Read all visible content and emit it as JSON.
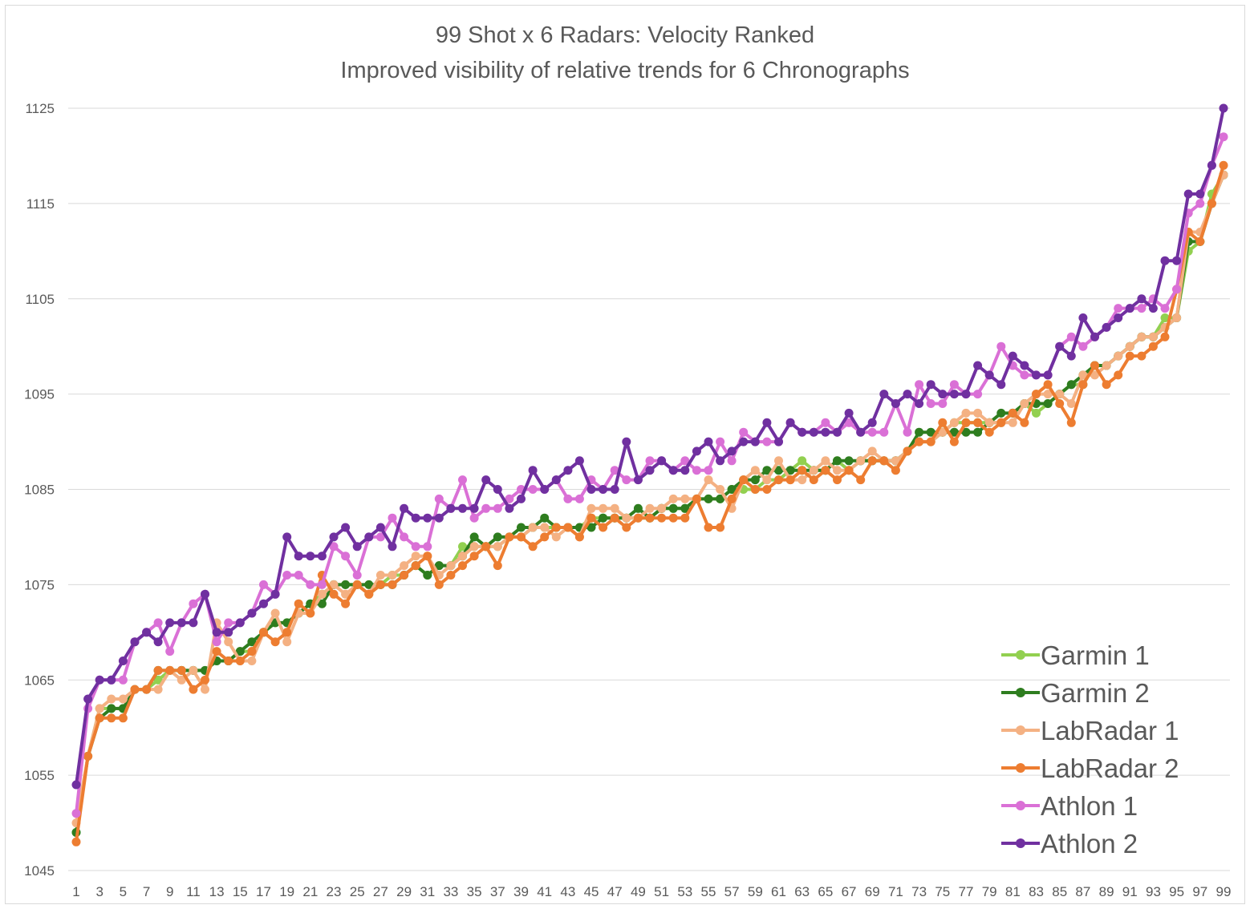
{
  "chart_data": {
    "type": "line",
    "title": "99 Shot x 6 Radars: Velocity Ranked",
    "subtitle": "Improved visibility of relative trends for 6 Chronographs",
    "xlabel": "",
    "ylabel": "",
    "ylim": [
      1045,
      1125
    ],
    "yticks": [
      1045,
      1055,
      1065,
      1075,
      1085,
      1095,
      1105,
      1115,
      1125
    ],
    "xticks": [
      1,
      3,
      5,
      7,
      9,
      11,
      13,
      15,
      17,
      19,
      21,
      23,
      25,
      27,
      29,
      31,
      33,
      35,
      37,
      39,
      41,
      43,
      45,
      47,
      49,
      51,
      53,
      55,
      57,
      59,
      61,
      63,
      65,
      67,
      69,
      71,
      73,
      75,
      77,
      79,
      81,
      83,
      85,
      87,
      89,
      91,
      93,
      95,
      97,
      99
    ],
    "grid": "horizontal",
    "legend_position": "bottom-right",
    "series": [
      {
        "name": "Garmin 1",
        "color": "#92d050",
        "values": [
          1049,
          1057,
          1062,
          1062,
          1062,
          1064,
          1064,
          1065,
          1066,
          1066,
          1066,
          1066,
          1067,
          1067,
          1068,
          1068,
          1070,
          1071,
          1071,
          1072,
          1073,
          1074,
          1075,
          1075,
          1075,
          1074,
          1075,
          1076,
          1076,
          1077,
          1076,
          1077,
          1077,
          1079,
          1079,
          1079,
          1079,
          1080,
          1080,
          1081,
          1081,
          1081,
          1081,
          1081,
          1082,
          1082,
          1082,
          1082,
          1082,
          1082,
          1083,
          1083,
          1083,
          1084,
          1084,
          1084,
          1085,
          1085,
          1085,
          1086,
          1086,
          1087,
          1088,
          1087,
          1087,
          1088,
          1087,
          1088,
          1088,
          1088,
          1088,
          1089,
          1090,
          1090,
          1091,
          1092,
          1092,
          1092,
          1092,
          1092,
          1093,
          1094,
          1093,
          1094,
          1095,
          1096,
          1096,
          1098,
          1098,
          1099,
          1100,
          1101,
          1101,
          1103,
          1103,
          1110,
          1111,
          1116,
          1118
        ]
      },
      {
        "name": "Garmin 2",
        "color": "#2e7d1f",
        "values": [
          1049,
          1057,
          1061,
          1062,
          1062,
          1064,
          1064,
          1066,
          1066,
          1066,
          1066,
          1066,
          1067,
          1067,
          1068,
          1069,
          1070,
          1071,
          1071,
          1072,
          1073,
          1073,
          1075,
          1075,
          1075,
          1075,
          1075,
          1075,
          1076,
          1077,
          1076,
          1077,
          1077,
          1078,
          1080,
          1079,
          1080,
          1080,
          1081,
          1081,
          1082,
          1081,
          1081,
          1081,
          1081,
          1082,
          1082,
          1082,
          1083,
          1082,
          1083,
          1083,
          1083,
          1084,
          1084,
          1084,
          1085,
          1086,
          1086,
          1087,
          1087,
          1087,
          1087,
          1087,
          1087,
          1088,
          1088,
          1088,
          1088,
          1088,
          1088,
          1089,
          1091,
          1091,
          1091,
          1091,
          1091,
          1091,
          1092,
          1093,
          1093,
          1094,
          1094,
          1094,
          1095,
          1096,
          1097,
          1098,
          1098,
          1099,
          1100,
          1101,
          1101,
          1102,
          1103,
          1111,
          1111,
          1115,
          1118
        ]
      },
      {
        "name": "LabRadar 1",
        "color": "#f4b183",
        "values": [
          1050,
          1057,
          1062,
          1063,
          1063,
          1064,
          1064,
          1064,
          1066,
          1065,
          1066,
          1064,
          1071,
          1069,
          1067,
          1067,
          1070,
          1072,
          1069,
          1072,
          1072,
          1074,
          1075,
          1074,
          1075,
          1074,
          1076,
          1076,
          1077,
          1078,
          1078,
          1076,
          1077,
          1078,
          1079,
          1079,
          1079,
          1080,
          1080,
          1081,
          1081,
          1080,
          1081,
          1080,
          1083,
          1083,
          1083,
          1082,
          1082,
          1083,
          1083,
          1084,
          1084,
          1084,
          1086,
          1085,
          1083,
          1086,
          1087,
          1086,
          1088,
          1086,
          1086,
          1087,
          1088,
          1087,
          1087,
          1088,
          1089,
          1088,
          1088,
          1089,
          1090,
          1090,
          1091,
          1092,
          1093,
          1093,
          1092,
          1092,
          1092,
          1094,
          1095,
          1095,
          1095,
          1094,
          1097,
          1097,
          1098,
          1099,
          1100,
          1101,
          1101,
          1102,
          1103,
          1112,
          1112,
          1115,
          1118
        ]
      },
      {
        "name": "LabRadar 2",
        "color": "#ed7d31",
        "values": [
          1048,
          1057,
          1061,
          1061,
          1061,
          1064,
          1064,
          1066,
          1066,
          1066,
          1064,
          1065,
          1068,
          1067,
          1067,
          1068,
          1070,
          1069,
          1070,
          1073,
          1072,
          1076,
          1074,
          1073,
          1075,
          1074,
          1075,
          1075,
          1076,
          1077,
          1078,
          1075,
          1076,
          1077,
          1078,
          1079,
          1077,
          1080,
          1080,
          1079,
          1080,
          1081,
          1081,
          1080,
          1082,
          1081,
          1082,
          1081,
          1082,
          1082,
          1082,
          1082,
          1082,
          1084,
          1081,
          1081,
          1084,
          1086,
          1085,
          1085,
          1086,
          1086,
          1087,
          1086,
          1087,
          1086,
          1087,
          1086,
          1088,
          1088,
          1087,
          1089,
          1090,
          1090,
          1092,
          1090,
          1092,
          1092,
          1091,
          1092,
          1093,
          1092,
          1095,
          1096,
          1094,
          1092,
          1096,
          1098,
          1096,
          1097,
          1099,
          1099,
          1100,
          1101,
          1106,
          1112,
          1111,
          1115,
          1119
        ]
      },
      {
        "name": "Athlon 1",
        "color": "#da70d6",
        "values": [
          1051,
          1062,
          1065,
          1065,
          1065,
          1069,
          1070,
          1071,
          1068,
          1071,
          1073,
          1074,
          1069,
          1071,
          1071,
          1072,
          1075,
          1074,
          1076,
          1076,
          1075,
          1075,
          1079,
          1078,
          1076,
          1080,
          1080,
          1082,
          1080,
          1079,
          1079,
          1084,
          1083,
          1086,
          1082,
          1083,
          1083,
          1084,
          1085,
          1085,
          1085,
          1086,
          1084,
          1084,
          1086,
          1085,
          1087,
          1086,
          1086,
          1088,
          1088,
          1087,
          1088,
          1087,
          1087,
          1090,
          1088,
          1091,
          1090,
          1090,
          1090,
          1092,
          1091,
          1091,
          1092,
          1091,
          1092,
          1091,
          1091,
          1091,
          1094,
          1091,
          1096,
          1094,
          1094,
          1096,
          1095,
          1095,
          1097,
          1100,
          1098,
          1097,
          1097,
          1097,
          1100,
          1101,
          1100,
          1101,
          1102,
          1104,
          1104,
          1104,
          1105,
          1104,
          1106,
          1114,
          1115,
          1119,
          1122
        ]
      },
      {
        "name": "Athlon 2",
        "color": "#7030a0",
        "values": [
          1054,
          1063,
          1065,
          1065,
          1067,
          1069,
          1070,
          1069,
          1071,
          1071,
          1071,
          1074,
          1070,
          1070,
          1071,
          1072,
          1073,
          1074,
          1080,
          1078,
          1078,
          1078,
          1080,
          1081,
          1079,
          1080,
          1081,
          1079,
          1083,
          1082,
          1082,
          1082,
          1083,
          1083,
          1083,
          1086,
          1085,
          1083,
          1084,
          1087,
          1085,
          1086,
          1087,
          1088,
          1085,
          1085,
          1085,
          1090,
          1086,
          1087,
          1088,
          1087,
          1087,
          1089,
          1090,
          1088,
          1089,
          1090,
          1090,
          1092,
          1090,
          1092,
          1091,
          1091,
          1091,
          1091,
          1093,
          1091,
          1092,
          1095,
          1094,
          1095,
          1094,
          1096,
          1095,
          1095,
          1095,
          1098,
          1097,
          1096,
          1099,
          1098,
          1097,
          1097,
          1100,
          1099,
          1103,
          1101,
          1102,
          1103,
          1104,
          1105,
          1104,
          1109,
          1109,
          1116,
          1116,
          1119,
          1125
        ]
      }
    ]
  }
}
